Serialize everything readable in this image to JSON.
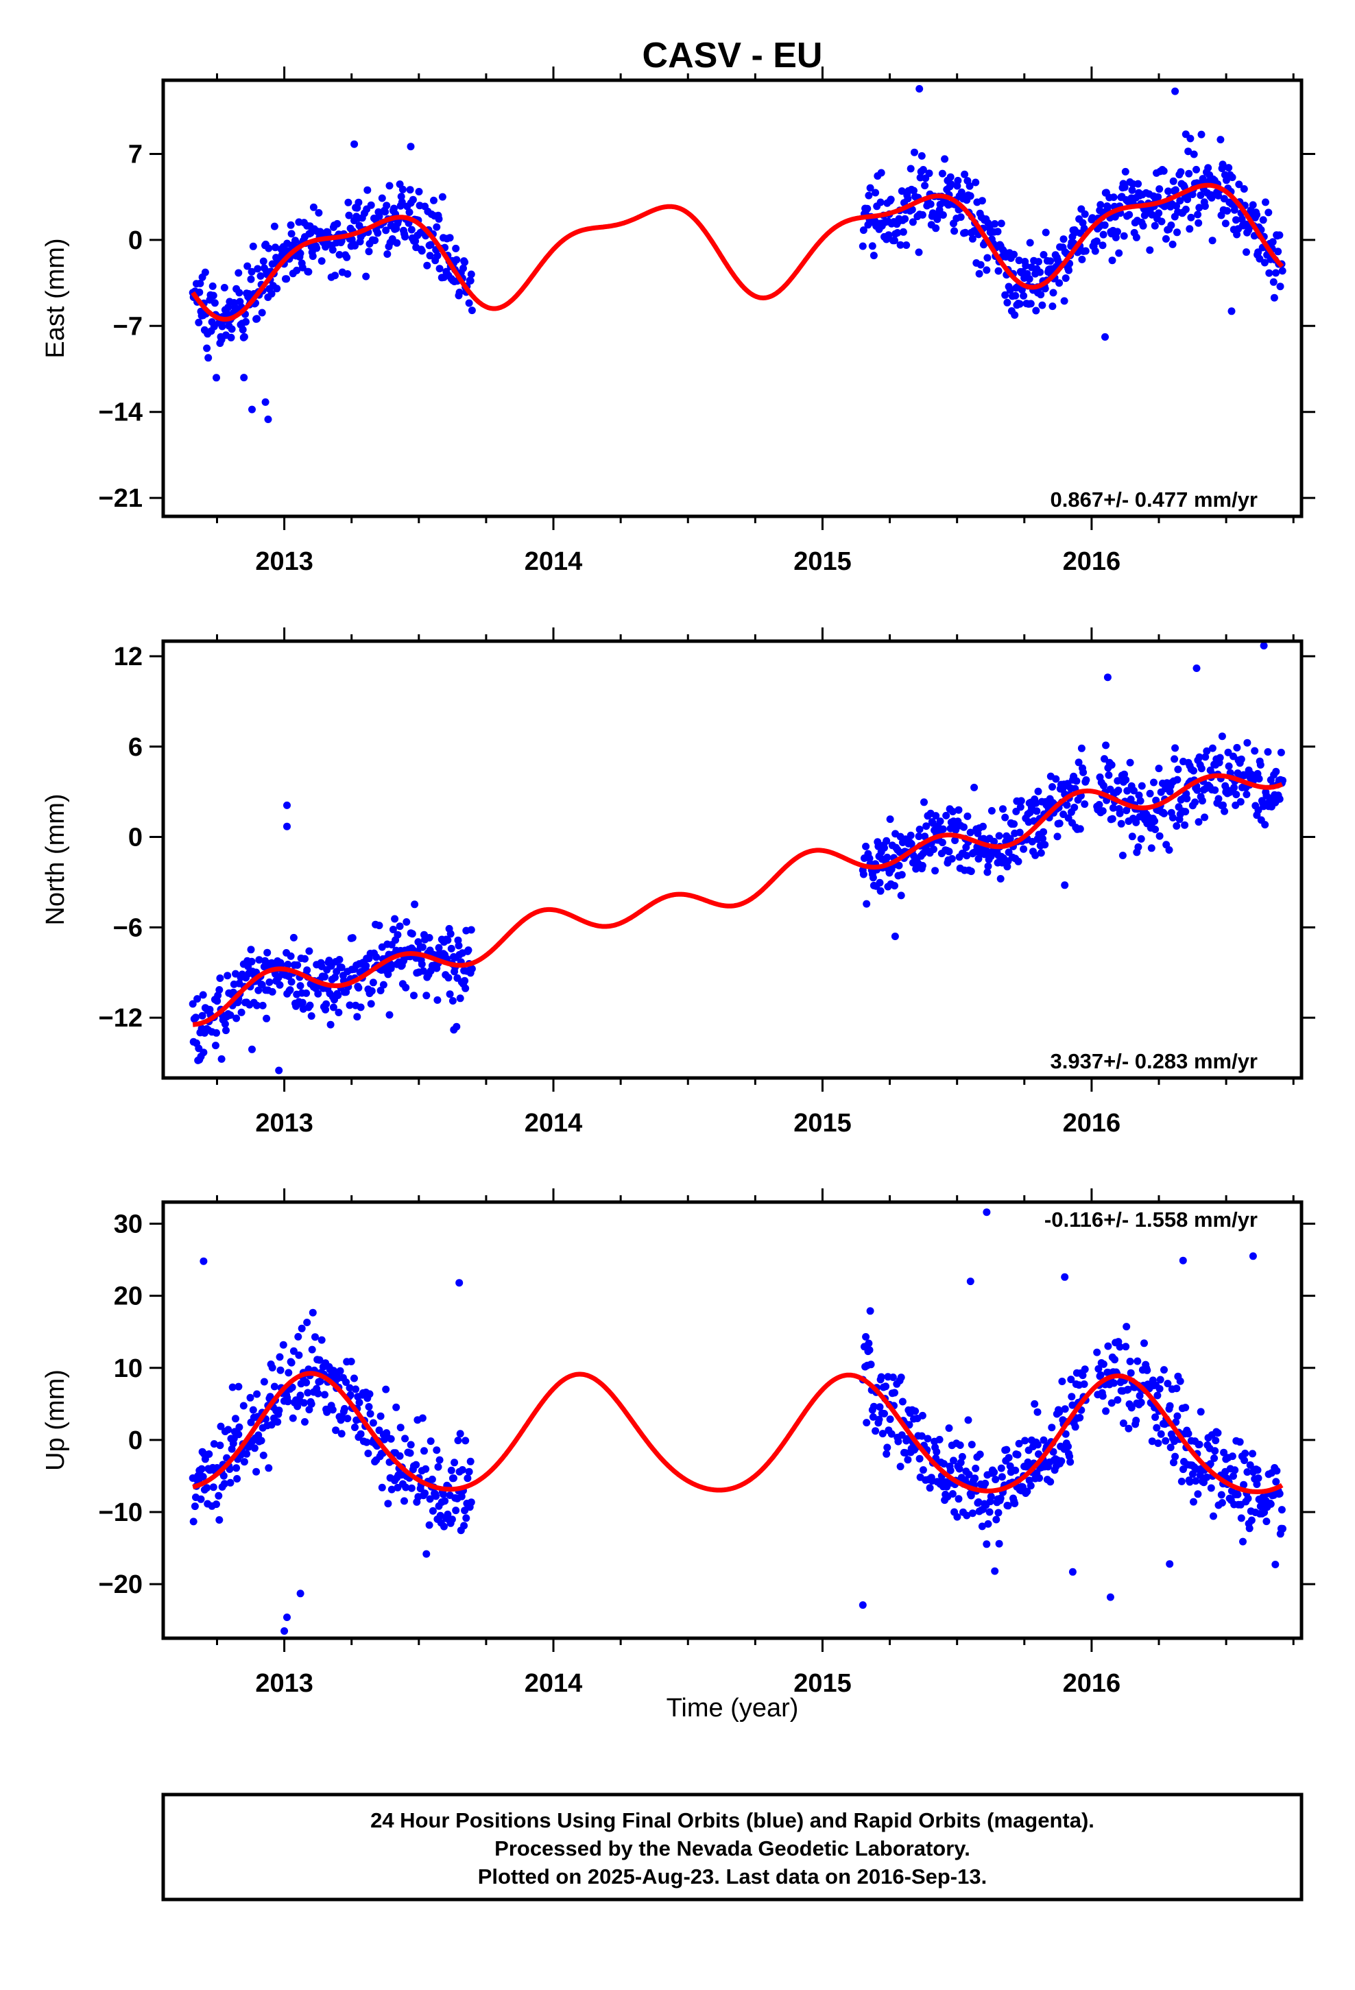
{
  "title": "CASV - EU",
  "xlabel": "Time (year)",
  "footer": {
    "line1": "24 Hour Positions Using Final Orbits (blue) and Rapid Orbits (magenta).",
    "line2": "Processed by the Nevada Geodetic Laboratory.",
    "line3": "Plotted on 2025-Aug-23. Last data on 2016-Sep-13."
  },
  "colors": {
    "points": "#0000ff",
    "fit": "#ff0000",
    "frame": "#000000"
  },
  "chart_data": [
    {
      "type": "scatter",
      "ylabel": "East (mm)",
      "rate": "0.867+/- 0.477 mm/yr",
      "xlim": [
        2012.55,
        2016.78
      ],
      "ylim": [
        -22.5,
        13
      ],
      "xticks": [
        2013,
        2014,
        2015,
        2016
      ],
      "yticks": [
        7,
        0,
        -7,
        -14,
        -21
      ],
      "segments": [
        [
          2012.66,
          2013.7
        ],
        [
          2015.15,
          2015.8
        ],
        [
          2015.8,
          2015.98
        ],
        [
          2016.0,
          2016.71
        ]
      ],
      "fit": {
        "mean": -0.18,
        "slope": 0.867,
        "amp1": 3.4,
        "phase1": -0.38,
        "amp2": 1.3,
        "phase2": 1.4
      },
      "noise": 1.5,
      "outliers": [
        [
          2012.85,
          -11.2
        ],
        [
          2012.88,
          -13.8
        ],
        [
          2012.93,
          -13.2
        ],
        [
          2012.94,
          -14.6
        ],
        [
          2013.26,
          7.8
        ],
        [
          2013.47,
          7.6
        ],
        [
          2015.36,
          12.3
        ],
        [
          2016.05,
          -7.9
        ],
        [
          2016.31,
          12.1
        ],
        [
          2016.52,
          -5.8
        ],
        [
          2016.35,
          8.6
        ]
      ]
    },
    {
      "type": "scatter",
      "ylabel": "North (mm)",
      "rate": "3.937+/- 0.283 mm/yr",
      "xlim": [
        2012.55,
        2016.78
      ],
      "ylim": [
        -16,
        13
      ],
      "xticks": [
        2013,
        2014,
        2015,
        2016
      ],
      "yticks": [
        12,
        6,
        0,
        -6,
        -12
      ],
      "segments": [
        [
          2012.66,
          2013.7
        ],
        [
          2015.15,
          2015.98
        ],
        [
          2016.02,
          2016.71
        ]
      ],
      "fit": {
        "mean": -3.3,
        "slope": 3.937,
        "amp1": 0.5,
        "phase1": 1.4,
        "amp2": 0.9,
        "phase2": 2.2
      },
      "noise": 1.2,
      "outliers": [
        [
          2013.01,
          2.1
        ],
        [
          2013.01,
          0.7
        ],
        [
          2012.7,
          -14.3
        ],
        [
          2012.88,
          -14.1
        ],
        [
          2012.98,
          -15.5
        ],
        [
          2013.63,
          -12.8
        ],
        [
          2015.27,
          -6.6
        ],
        [
          2015.9,
          -3.2
        ],
        [
          2016.64,
          12.7
        ],
        [
          2016.39,
          11.2
        ],
        [
          2016.06,
          10.6
        ]
      ]
    },
    {
      "type": "scatter",
      "ylabel": "Up (mm)",
      "rate": "-0.116+/- 1.558 mm/yr",
      "xlim": [
        2012.55,
        2016.78
      ],
      "ylim": [
        -27.5,
        33
      ],
      "xticks": [
        2013,
        2014,
        2015,
        2016
      ],
      "yticks": [
        30,
        20,
        10,
        0,
        -10,
        -20
      ],
      "segments": [
        [
          2012.66,
          2013.7
        ],
        [
          2015.15,
          2015.8
        ],
        [
          2015.8,
          2015.98
        ],
        [
          2016.02,
          2016.71
        ]
      ],
      "fit": {
        "mean": 0.27,
        "slope": -0.116,
        "amp1": 8.0,
        "phase1": 0.92,
        "amp2": 0.8,
        "phase2": 0.5
      },
      "noise": 3.2,
      "outliers": [
        [
          2015.61,
          31.6
        ],
        [
          2016.34,
          24.9
        ],
        [
          2016.6,
          25.5
        ],
        [
          2015.9,
          22.6
        ],
        [
          2013.65,
          21.8
        ],
        [
          2015.55,
          22.0
        ],
        [
          2012.7,
          24.8
        ],
        [
          2013.0,
          -26.5
        ],
        [
          2013.01,
          -24.6
        ],
        [
          2013.06,
          -21.3
        ],
        [
          2015.15,
          -22.9
        ],
        [
          2016.07,
          -21.8
        ],
        [
          2015.93,
          -18.3
        ],
        [
          2016.29,
          -17.2
        ],
        [
          2012.83,
          7.4
        ]
      ]
    }
  ]
}
